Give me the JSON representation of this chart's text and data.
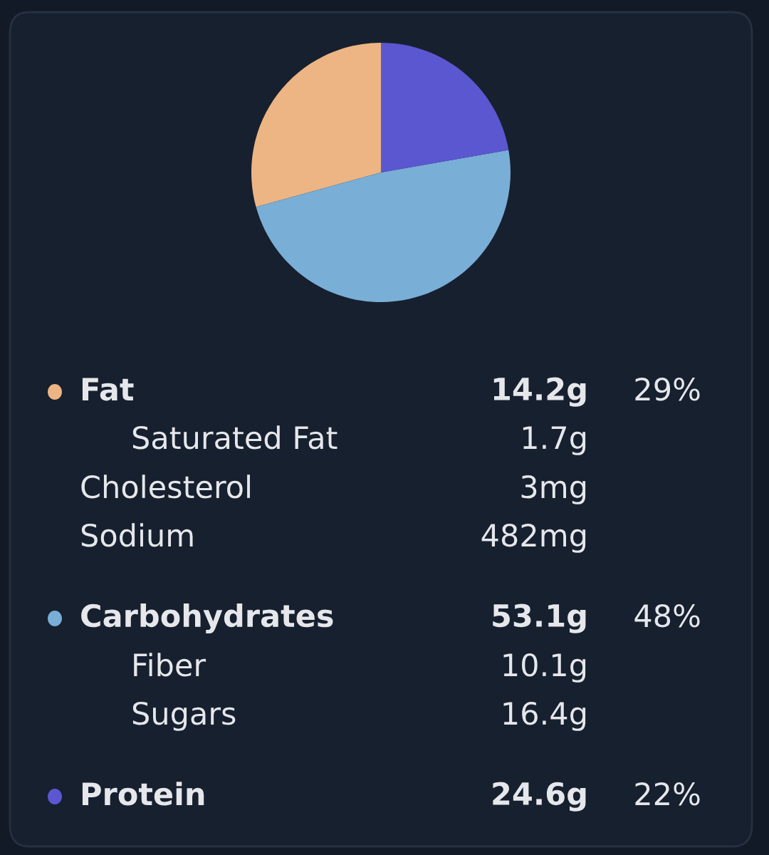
{
  "chart_data": {
    "type": "pie",
    "categories": [
      "Fat",
      "Carbohydrates",
      "Protein"
    ],
    "values": [
      29,
      48,
      22
    ],
    "colors": [
      "#edb583",
      "#79aed6",
      "#5b57d1"
    ],
    "value_labels": [
      "29%",
      "48%",
      "22%"
    ],
    "legend": "bottom",
    "annotations": [
      "14.2g",
      "Saturated Fat",
      "1.7g",
      "Cholesterol",
      "3mg",
      "Sodium",
      "482mg",
      "53.1g",
      "Fiber",
      "10.1g",
      "Sugars",
      "16.4g",
      "24.6g"
    ]
  }
}
